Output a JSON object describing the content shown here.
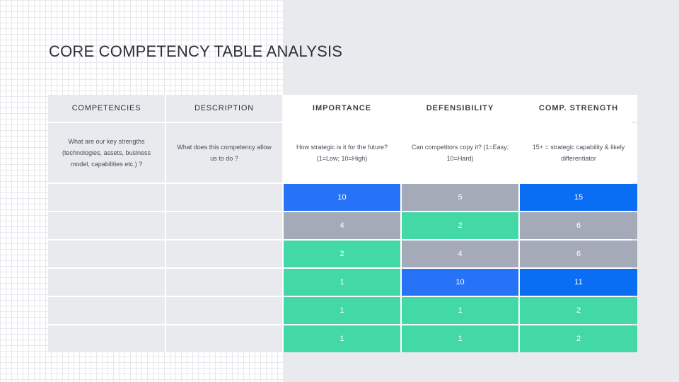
{
  "title": "CORE COMPETENCY TABLE ANALYSIS",
  "colors": {
    "blue": "#2673f8",
    "strong_blue": "#0a6ef5",
    "gray": "#a5aab9",
    "green": "#43d9a6"
  },
  "table": {
    "headers": [
      "COMPETENCIES",
      "DESCRIPTION",
      "IMPORTANCE",
      "DEFENSIBILITY",
      "COMP. STRENGTH"
    ],
    "descriptions": [
      "What are our key strengths (technologies, assets, business model, capabilities etc.) ?",
      "What does this competency allow us to do ?",
      "How strategic is it for the future? (1=Low; 10=High)",
      "Can competitors copy it? (1=Easy; 10=Hard)",
      "15+ = strategic capability & likely differentiator"
    ],
    "rows": [
      {
        "competency": "",
        "description": "",
        "importance": "10",
        "defensibility": "5",
        "strength": "15",
        "colors": [
          "blue",
          "gray",
          "strong_blue"
        ]
      },
      {
        "competency": "",
        "description": "",
        "importance": "4",
        "defensibility": "2",
        "strength": "6",
        "colors": [
          "gray",
          "green",
          "gray"
        ]
      },
      {
        "competency": "",
        "description": "",
        "importance": "2",
        "defensibility": "4",
        "strength": "6",
        "colors": [
          "green",
          "gray",
          "gray"
        ]
      },
      {
        "competency": "",
        "description": "",
        "importance": "1",
        "defensibility": "10",
        "strength": "11",
        "colors": [
          "green",
          "blue",
          "strong_blue"
        ]
      },
      {
        "competency": "",
        "description": "",
        "importance": "1",
        "defensibility": "1",
        "strength": "2",
        "colors": [
          "green",
          "green",
          "green"
        ]
      },
      {
        "competency": "",
        "description": "",
        "importance": "1",
        "defensibility": "1",
        "strength": "2",
        "colors": [
          "green",
          "green",
          "green"
        ]
      }
    ]
  }
}
